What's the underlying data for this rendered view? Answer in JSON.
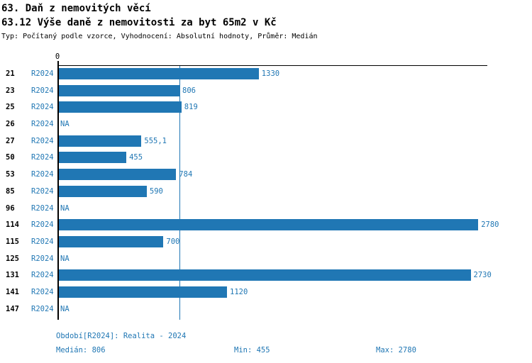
{
  "header": {
    "title_line1": "63. Daň z nemovitých věcí",
    "title_line2": "63.12 Výše daně z nemovitosti za byt 65m2 v Kč",
    "subtitle": "Typ: Počítaný podle vzorce, Vyhodnocení: Absolutní hodnoty, Průměr: Medián"
  },
  "chart_data": {
    "type": "bar",
    "orientation": "horizontal",
    "unit": "Kč",
    "series_name": "R2024",
    "categories": [
      "21",
      "23",
      "25",
      "26",
      "27",
      "50",
      "53",
      "85",
      "96",
      "114",
      "115",
      "125",
      "131",
      "141",
      "147"
    ],
    "values": [
      1330,
      806,
      819,
      null,
      555.1,
      455,
      784,
      590,
      null,
      2780,
      700,
      null,
      2730,
      1120,
      null
    ],
    "value_labels": [
      "1330",
      "806",
      "819",
      "NA",
      "555,1",
      "455",
      "784",
      "590",
      "NA",
      "2780",
      "700",
      "NA",
      "2730",
      "1120",
      "NA"
    ],
    "x_axis": {
      "tick_labels": [
        "0"
      ],
      "xlim": [
        0,
        2840
      ]
    },
    "reference_line": {
      "value": 806,
      "meaning": "median"
    },
    "colors": {
      "bar": "#2077b4",
      "axis": "#000000",
      "label_text": "#2077b4"
    }
  },
  "footer": {
    "period_label": "Období[R2024]: Realita - 2024",
    "median_label": "Medián: 806",
    "min_label": "Min: 455",
    "max_label": "Max: 2780"
  }
}
